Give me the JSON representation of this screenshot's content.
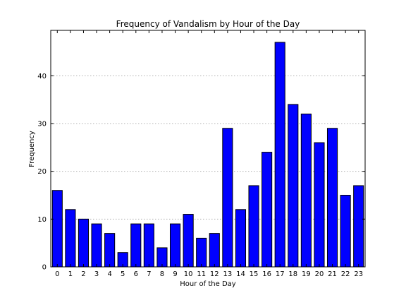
{
  "chart_data": {
    "type": "bar",
    "title": "Frequency of Vandalism by Hour of the Day",
    "xlabel": "Hour of the Day",
    "ylabel": "Frequency",
    "categories": [
      "0",
      "1",
      "2",
      "3",
      "4",
      "5",
      "6",
      "7",
      "8",
      "9",
      "10",
      "11",
      "12",
      "13",
      "14",
      "15",
      "16",
      "17",
      "18",
      "19",
      "20",
      "21",
      "22",
      "23"
    ],
    "values": [
      16,
      12,
      10,
      9,
      7,
      3,
      9,
      9,
      4,
      9,
      11,
      6,
      7,
      29,
      12,
      17,
      24,
      47,
      34,
      32,
      26,
      29,
      15,
      17
    ],
    "ylim": [
      0,
      49.5
    ],
    "yticks": [
      0,
      10,
      20,
      30,
      40
    ],
    "grid": "y",
    "legend": "none",
    "bar_color": "#0000ff",
    "edge_color": "#000000"
  }
}
